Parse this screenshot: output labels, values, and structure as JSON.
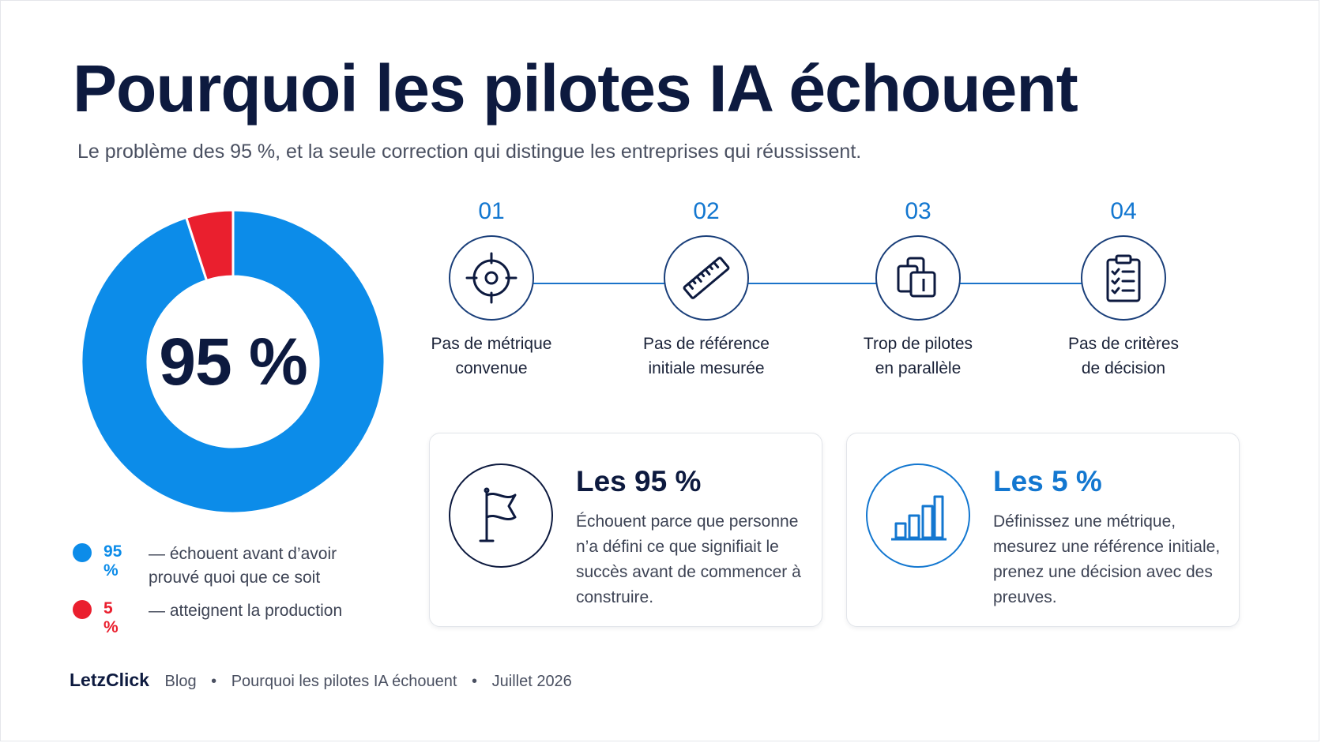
{
  "header": {
    "title": "Pourquoi les pilotes IA échouent",
    "subtitle": "Le problème des 95 %, et la seule correction qui distingue les entreprises qui réussissent."
  },
  "donut": {
    "center_label": "95 %",
    "segments": [
      {
        "value": 95,
        "color": "#0c8ce9"
      },
      {
        "value": 5,
        "color": "#ea1f2e"
      }
    ]
  },
  "legend": [
    {
      "value": "95 %",
      "text": "— échouent avant d’avoir prouvé quoi que ce soit",
      "color": "#0c8ce9"
    },
    {
      "value": "5 %",
      "text": "— atteignent la production",
      "color": "#ea1f2e"
    }
  ],
  "steps": [
    {
      "number": "01",
      "label": "Pas de métrique\nconvenue",
      "icon": "target-icon"
    },
    {
      "number": "02",
      "label": "Pas de référence\ninitiale mesurée",
      "icon": "ruler-icon"
    },
    {
      "number": "03",
      "label": "Trop de pilotes\nen parallèle",
      "icon": "stacked-copies-icon"
    },
    {
      "number": "04",
      "label": "Pas de critères\nde décision",
      "icon": "clipboard-checklist-icon"
    }
  ],
  "cards": [
    {
      "title": "Les 95 %",
      "text": "Échouent parce que personne n’a défini ce que signifiait le succès avant de commencer à construire.",
      "icon": "flag-icon",
      "title_color": "#0d1a3f"
    },
    {
      "title": "Les 5 %",
      "text": "Définissez une métrique, mesurez une référence initiale, prenez une décision avec des preuves.",
      "icon": "bar-chart-icon",
      "title_color": "#1377d0"
    }
  ],
  "footer": {
    "brand": "LetzClick",
    "section": "Blog",
    "article": "Pourquoi les pilotes IA échouent",
    "date": "Juillet 2026",
    "separator": "•"
  },
  "colors": {
    "navy": "#0d1a3f",
    "accent_blue": "#0c8ce9",
    "accent_red": "#ea1f2e",
    "step_number": "#1377d0"
  }
}
